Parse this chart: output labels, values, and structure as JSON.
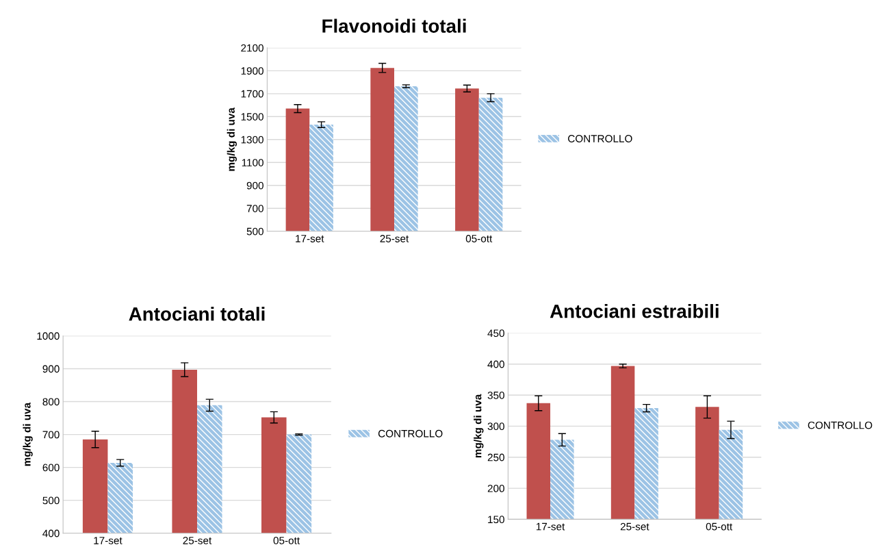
{
  "chart_data": [
    {
      "type": "bar",
      "title": "Flavonoidi totali",
      "ylabel": "mg/kg di uva",
      "categories": [
        "17-set",
        "25-set",
        "05-ott"
      ],
      "ylim": [
        500,
        2100
      ],
      "yticks": [
        500,
        700,
        900,
        1100,
        1300,
        1500,
        1700,
        1900,
        2100
      ],
      "grid": "y",
      "legend": "right",
      "series": [
        {
          "color": "#c0504d",
          "values": [
            1570,
            1925,
            1745
          ],
          "errors": [
            35,
            40,
            30
          ]
        },
        {
          "name": "CONTROLLO",
          "color": "#9cc3e5",
          "values": [
            1430,
            1765,
            1665
          ],
          "errors": [
            25,
            12,
            35
          ]
        }
      ]
    },
    {
      "type": "bar",
      "title": "Antociani totali",
      "ylabel": "mg/kg di uva",
      "categories": [
        "17-set",
        "25-set",
        "05-ott"
      ],
      "ylim": [
        400,
        1000
      ],
      "yticks": [
        400,
        500,
        600,
        700,
        800,
        900,
        1000
      ],
      "grid": "y",
      "legend": "right",
      "series": [
        {
          "color": "#c0504d",
          "values": [
            685,
            897,
            752
          ],
          "errors": [
            25,
            21,
            17
          ]
        },
        {
          "name": "CONTROLLO",
          "color": "#9cc3e5",
          "values": [
            614,
            789,
            700
          ],
          "errors": [
            10,
            18,
            2
          ]
        }
      ]
    },
    {
      "type": "bar",
      "title": "Antociani estraibili",
      "ylabel": "mg/kg di uva",
      "categories": [
        "17-set",
        "25-set",
        "05-ott"
      ],
      "ylim": [
        150,
        450
      ],
      "yticks": [
        150,
        200,
        250,
        300,
        350,
        400,
        450
      ],
      "grid": "y",
      "legend": "right",
      "series": [
        {
          "color": "#c0504d",
          "values": [
            337,
            397,
            331
          ],
          "errors": [
            12,
            3,
            18
          ]
        },
        {
          "name": "CONTROLLO",
          "color": "#9cc3e5",
          "values": [
            278,
            329,
            294
          ],
          "errors": [
            10,
            6,
            14
          ]
        }
      ]
    }
  ]
}
